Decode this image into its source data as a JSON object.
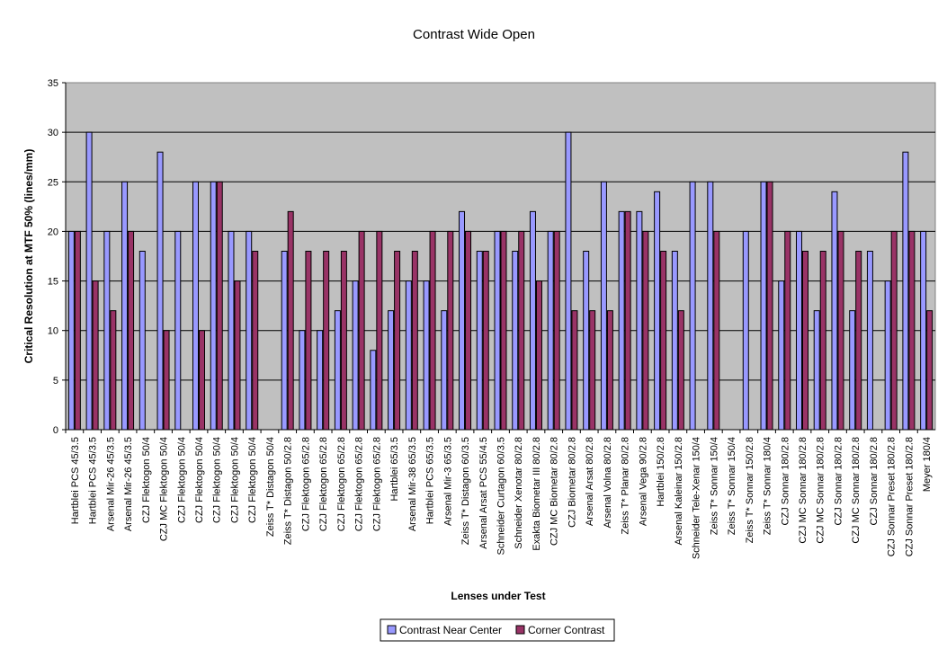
{
  "chart_data": {
    "type": "bar",
    "title": "Contrast Wide Open",
    "xlabel": "Lenses under Test",
    "ylabel": "Critical Resolution at MTF 50% (lines/mm)",
    "ylim": [
      0,
      35
    ],
    "yticks": [
      0,
      5,
      10,
      15,
      20,
      25,
      30,
      35
    ],
    "grid": true,
    "legend_position": "bottom",
    "plot_background": "#c0c0c0",
    "categories": [
      "Hartblei PCS 45/3.5",
      "Hartblei PCS 45/3.5",
      "Arsenal Mir-26 45/3.5",
      "Arsenal Mir-26 45/3.5",
      "CZJ Flektogon 50/4",
      "CZJ MC Flektogon 50/4",
      "CZJ Flektogon 50/4",
      "CZJ Flektogon 50/4",
      "CZJ Flektogon 50/4",
      "CZJ Flektogon 50/4",
      "CZJ Flektogon 50/4",
      "Zeiss T* Distagon 50/4",
      "Zeiss T* Distagon 50/2.8",
      "CZJ Flektogon 65/2.8",
      "CZJ Flektogon 65/2.8",
      "CZJ Flektogon 65/2.8",
      "CZJ Flektogon 65/2.8",
      "CZJ Flektogon 65/2.8",
      "Hartblei 65/3.5",
      "Arsenal Mir-38 65/3.5",
      "Hartblei PCS 65/3.5",
      "Arsenal Mir-3 65/3.5",
      "Zeiss T* Distagon 60/3.5",
      "Arsenal Arsat PCS 55/4.5",
      "Schneider Curtagon 60/3.5",
      "Schneider Xenotar 80/2.8",
      "Exakta Biometar III 80/2.8",
      "CZJ MC Biometar 80/2.8",
      "CZJ Biometar    80/2.8",
      "Arsenal Arsat 80/2.8",
      "Arsenal Volna 80/2.8",
      "Zeiss T* Planar 80/2.8",
      "Arsenal Vega 90/2.8",
      "Hartblei 150/2.8",
      "Arsenal Kaleinar 150/2.8",
      "Schneider Tele-Xenar 150/4",
      "Zeiss T* Sonnar 150/4",
      "Zeiss T* Sonnar 150/4",
      "Zeiss T* Sonnar 150/2.8",
      "Zeiss T* Sonnar 180/4",
      "CZJ Sonnar 180/2.8",
      "CZJ MC Sonnar 180/2.8",
      "CZJ MC Sonnar 180/2.8",
      "CZJ Sonnar 180/2.8",
      "CZJ MC Sonnar 180/2.8",
      "CZJ Sonnar 180/2.8",
      "CZJ Sonnar Preset 180/2.8",
      "CZJ Sonnar Preset 180/2.8",
      "Meyer    180/4"
    ],
    "series": [
      {
        "name": "Contrast Near Center",
        "color": "#9999ff",
        "values": [
          20,
          30,
          20,
          25,
          18,
          28,
          20,
          25,
          25,
          20,
          20,
          null,
          18,
          10,
          10,
          12,
          15,
          8,
          12,
          15,
          15,
          12,
          22,
          18,
          20,
          18,
          22,
          20,
          30,
          18,
          25,
          22,
          22,
          24,
          18,
          25,
          25,
          null,
          20,
          25,
          15,
          20,
          12,
          24,
          12,
          18,
          15,
          28,
          20
        ]
      },
      {
        "name": "Corner Contrast",
        "color": "#993366",
        "values": [
          20,
          15,
          12,
          20,
          null,
          10,
          null,
          10,
          25,
          15,
          18,
          null,
          22,
          18,
          18,
          18,
          20,
          20,
          18,
          18,
          20,
          20,
          20,
          18,
          20,
          20,
          15,
          20,
          12,
          12,
          12,
          22,
          20,
          18,
          12,
          null,
          20,
          null,
          null,
          25,
          20,
          18,
          18,
          20,
          18,
          null,
          20,
          20,
          12
        ]
      }
    ]
  }
}
